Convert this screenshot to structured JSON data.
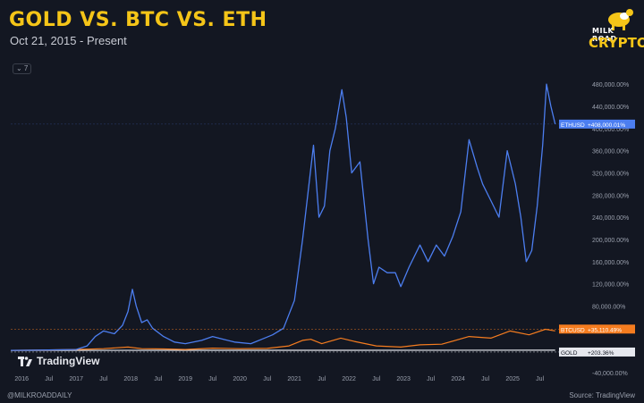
{
  "header": {
    "title": "GOLD VS. BTC VS. ETH",
    "subtitle": "Oct 21, 2015 - Present",
    "collapse_label": "⌄ 7"
  },
  "logo": {
    "top": "MILK ROAD",
    "main": "CRYPTO"
  },
  "branding": {
    "tradingview": "TradingView"
  },
  "footer": {
    "left": "@MILKROADDAILY",
    "right": "Source: TradingView"
  },
  "colors": {
    "eth": "#4c7ef0",
    "btc": "#f57c1f",
    "gold": "#e6e8ee",
    "bg": "#131722"
  },
  "chart_data": {
    "type": "line",
    "x_tick_labels": [
      "2016",
      "Jul",
      "2017",
      "Jul",
      "2018",
      "Jul",
      "2019",
      "Jul",
      "2020",
      "Jul",
      "2021",
      "Jul",
      "2022",
      "Jul",
      "2023",
      "Jul",
      "2024",
      "Jul",
      "2025",
      "Jul"
    ],
    "y_tick_labels": [
      "480,000.00%",
      "440,000.00%",
      "400,000.00%",
      "360,000.00%",
      "320,000.00%",
      "280,000.00%",
      "240,000.00%",
      "200,000.00%",
      "160,000.00%",
      "120,000.00%",
      "80,000.00%",
      "40,000.00%",
      "0.00%",
      "-40,000.00%"
    ],
    "ylim": [
      -45000,
      490000
    ],
    "grid": false,
    "series": [
      {
        "name": "ETHUSD",
        "last_label": "+408,000.01%",
        "points": [
          [
            2015.8,
            0
          ],
          [
            2016.5,
            800
          ],
          [
            2017.0,
            1500
          ],
          [
            2017.2,
            8000
          ],
          [
            2017.35,
            25000
          ],
          [
            2017.5,
            35000
          ],
          [
            2017.7,
            30000
          ],
          [
            2017.85,
            45000
          ],
          [
            2017.95,
            70000
          ],
          [
            2018.03,
            110000
          ],
          [
            2018.1,
            80000
          ],
          [
            2018.2,
            50000
          ],
          [
            2018.3,
            55000
          ],
          [
            2018.4,
            40000
          ],
          [
            2018.6,
            25000
          ],
          [
            2018.8,
            15000
          ],
          [
            2019.0,
            12000
          ],
          [
            2019.3,
            18000
          ],
          [
            2019.5,
            25000
          ],
          [
            2019.7,
            20000
          ],
          [
            2019.9,
            15000
          ],
          [
            2020.2,
            12000
          ],
          [
            2020.4,
            20000
          ],
          [
            2020.6,
            28000
          ],
          [
            2020.8,
            40000
          ],
          [
            2021.0,
            90000
          ],
          [
            2021.15,
            200000
          ],
          [
            2021.35,
            370000
          ],
          [
            2021.45,
            240000
          ],
          [
            2021.55,
            260000
          ],
          [
            2021.65,
            360000
          ],
          [
            2021.75,
            400000
          ],
          [
            2021.87,
            470000
          ],
          [
            2021.95,
            420000
          ],
          [
            2022.05,
            320000
          ],
          [
            2022.2,
            340000
          ],
          [
            2022.35,
            200000
          ],
          [
            2022.45,
            120000
          ],
          [
            2022.55,
            150000
          ],
          [
            2022.7,
            140000
          ],
          [
            2022.85,
            140000
          ],
          [
            2022.95,
            115000
          ],
          [
            2023.1,
            150000
          ],
          [
            2023.3,
            190000
          ],
          [
            2023.45,
            160000
          ],
          [
            2023.6,
            190000
          ],
          [
            2023.75,
            170000
          ],
          [
            2023.9,
            205000
          ],
          [
            2024.05,
            250000
          ],
          [
            2024.2,
            380000
          ],
          [
            2024.35,
            330000
          ],
          [
            2024.45,
            300000
          ],
          [
            2024.6,
            270000
          ],
          [
            2024.75,
            240000
          ],
          [
            2024.9,
            360000
          ],
          [
            2025.05,
            300000
          ],
          [
            2025.15,
            240000
          ],
          [
            2025.25,
            160000
          ],
          [
            2025.35,
            180000
          ],
          [
            2025.45,
            260000
          ],
          [
            2025.55,
            370000
          ],
          [
            2025.62,
            480000
          ],
          [
            2025.7,
            440000
          ],
          [
            2025.78,
            408000
          ]
        ]
      },
      {
        "name": "BTCUSD",
        "last_label": "+35,110.49%",
        "points": [
          [
            2015.8,
            0
          ],
          [
            2016.5,
            800
          ],
          [
            2017.0,
            1500
          ],
          [
            2017.5,
            3000
          ],
          [
            2017.95,
            6000
          ],
          [
            2018.2,
            3000
          ],
          [
            2018.6,
            2500
          ],
          [
            2019.0,
            1500
          ],
          [
            2019.5,
            4000
          ],
          [
            2020.0,
            3000
          ],
          [
            2020.5,
            3500
          ],
          [
            2020.9,
            8000
          ],
          [
            2021.15,
            18000
          ],
          [
            2021.3,
            20000
          ],
          [
            2021.5,
            12000
          ],
          [
            2021.85,
            22000
          ],
          [
            2022.1,
            16000
          ],
          [
            2022.5,
            8000
          ],
          [
            2022.95,
            6000
          ],
          [
            2023.3,
            10000
          ],
          [
            2023.7,
            11000
          ],
          [
            2024.2,
            25000
          ],
          [
            2024.6,
            22000
          ],
          [
            2024.95,
            35000
          ],
          [
            2025.3,
            28000
          ],
          [
            2025.6,
            38000
          ],
          [
            2025.78,
            35110
          ]
        ]
      },
      {
        "name": "GOLD",
        "last_label": "+203.36%",
        "points": [
          [
            2015.8,
            0
          ],
          [
            2019.0,
            50
          ],
          [
            2022.0,
            120
          ],
          [
            2025.78,
            203
          ]
        ]
      }
    ]
  }
}
